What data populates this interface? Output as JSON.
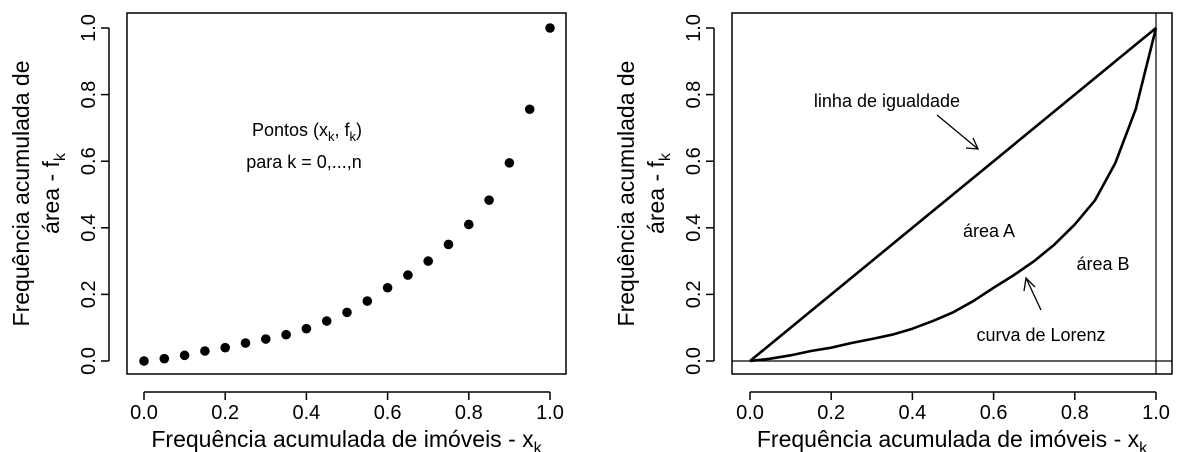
{
  "chart_data": [
    {
      "type": "scatter",
      "xlabel": "Frequência acumulada de imóveis - x",
      "xlabel_sub": "k",
      "ylabel_line1": "Frequência acumulada de",
      "ylabel_line2": "área - f",
      "ylabel_sub": "k",
      "xlim": [
        0,
        1
      ],
      "ylim": [
        0,
        1
      ],
      "xticks": [
        "0.0",
        "0.2",
        "0.4",
        "0.6",
        "0.8",
        "1.0"
      ],
      "yticks": [
        "0.0",
        "0.2",
        "0.4",
        "0.6",
        "0.8",
        "1.0"
      ],
      "grid": false,
      "series": [
        {
          "x": [
            0,
            0.05,
            0.1,
            0.15,
            0.2,
            0.25,
            0.3,
            0.35,
            0.4,
            0.45,
            0.5,
            0.55,
            0.6,
            0.65,
            0.7,
            0.75,
            0.8,
            0.85,
            0.9,
            0.95,
            1.0
          ],
          "y": [
            0.0,
            0.007,
            0.017,
            0.03,
            0.04,
            0.054,
            0.066,
            0.079,
            0.097,
            0.12,
            0.146,
            0.18,
            0.22,
            0.258,
            0.3,
            0.35,
            0.41,
            0.483,
            0.595,
            0.756,
            1.0
          ]
        }
      ],
      "annotation": {
        "line1_pre": "Pontos (x",
        "line1_sub1": "k",
        "line1_mid": ", f",
        "line1_sub2": "k",
        "line1_post": ")",
        "line2": "para k = 0,...,n"
      }
    },
    {
      "type": "line",
      "xlabel": "Frequência acumulada de imóveis - x",
      "xlabel_sub": "k",
      "ylabel_line1": "Frequência acumulada de",
      "ylabel_line2": "área - f",
      "ylabel_sub": "k",
      "xlim": [
        0,
        1
      ],
      "ylim": [
        0,
        1
      ],
      "xticks": [
        "0.0",
        "0.2",
        "0.4",
        "0.6",
        "0.8",
        "1.0"
      ],
      "yticks": [
        "0.0",
        "0.2",
        "0.4",
        "0.6",
        "0.8",
        "1.0"
      ],
      "grid": false,
      "reference_lines": {
        "h": 0,
        "v": 1
      },
      "series": [
        {
          "x": [
            0,
            1
          ],
          "y": [
            0,
            1
          ]
        },
        {
          "x": [
            0,
            0.05,
            0.1,
            0.15,
            0.2,
            0.25,
            0.3,
            0.35,
            0.4,
            0.45,
            0.5,
            0.55,
            0.6,
            0.65,
            0.7,
            0.75,
            0.8,
            0.85,
            0.9,
            0.95,
            1.0
          ],
          "y": [
            0.0,
            0.007,
            0.017,
            0.03,
            0.04,
            0.054,
            0.066,
            0.079,
            0.097,
            0.12,
            0.146,
            0.18,
            0.22,
            0.258,
            0.3,
            0.35,
            0.41,
            0.483,
            0.595,
            0.756,
            1.0
          ]
        }
      ],
      "annotations": [
        {
          "text": "linha de igualdade",
          "arrow_to": [
            0.58,
            0.63
          ]
        },
        {
          "text": "área A"
        },
        {
          "text": "área B"
        },
        {
          "text": "curva de Lorenz",
          "arrow_to": [
            0.68,
            0.26
          ]
        }
      ]
    }
  ]
}
